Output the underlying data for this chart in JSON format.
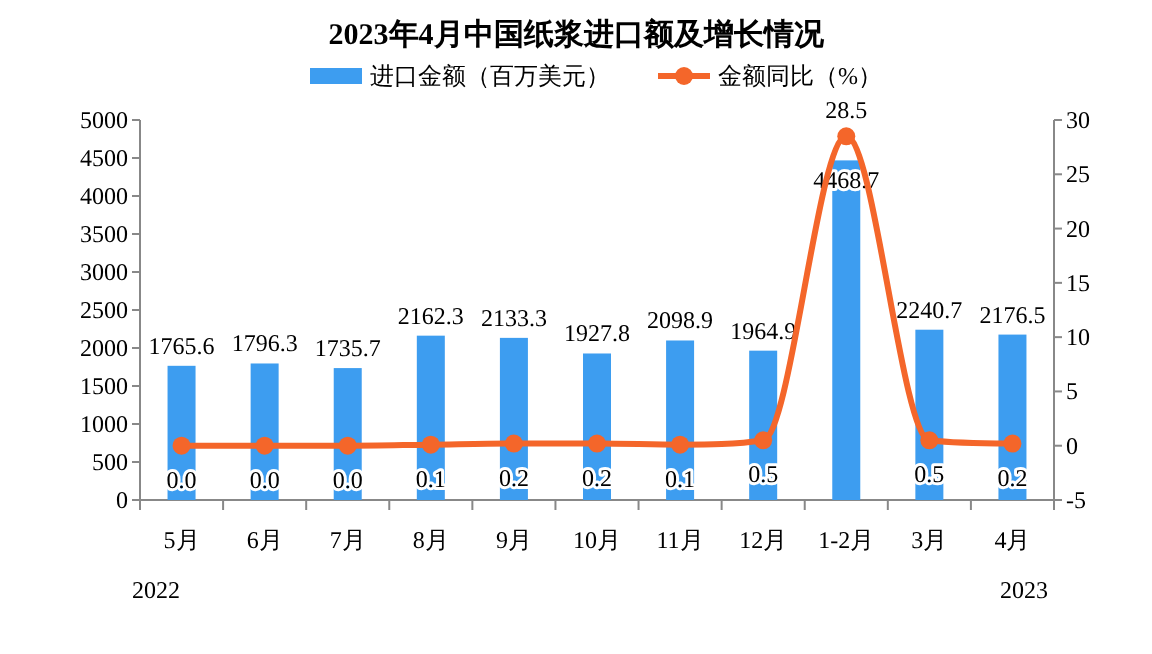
{
  "chart_data": {
    "type": "bar",
    "title": "2023年4月中国纸浆进口额及增长情况",
    "categories": [
      "5月",
      "6月",
      "7月",
      "8月",
      "9月",
      "10月",
      "11月",
      "12月",
      "1-2月",
      "3月",
      "4月"
    ],
    "series": [
      {
        "name": "进口金额（百万美元）",
        "color": "#3d9df0",
        "values": [
          1765.6,
          1796.3,
          1735.7,
          2162.3,
          2133.3,
          1927.8,
          2098.9,
          1964.9,
          4468.7,
          2240.7,
          2176.5
        ]
      },
      {
        "name": "金额同比（%）",
        "type": "line",
        "axis": "y2",
        "color": "#f4662a",
        "values": [
          0.0,
          0.0,
          0.0,
          0.1,
          0.2,
          0.2,
          0.1,
          0.5,
          28.5,
          0.5,
          0.2
        ],
        "value_labels": [
          "0.0",
          "0.0",
          "0.0",
          "0.1",
          "0.2",
          "0.2",
          "0.1",
          "0.5",
          "28.5",
          "0.5",
          "0.2"
        ]
      }
    ],
    "ylim": [
      0,
      5000
    ],
    "yticks": [
      0,
      500,
      1000,
      1500,
      2000,
      2500,
      3000,
      3500,
      4000,
      4500,
      5000
    ],
    "y2lim": [
      -5,
      30
    ],
    "y2ticks": [
      -5,
      0,
      5,
      10,
      15,
      20,
      25,
      30
    ],
    "data_labels": true,
    "legend": "top",
    "marker": "circle",
    "grid": false,
    "annotations": [
      "2022",
      "2023"
    ]
  }
}
